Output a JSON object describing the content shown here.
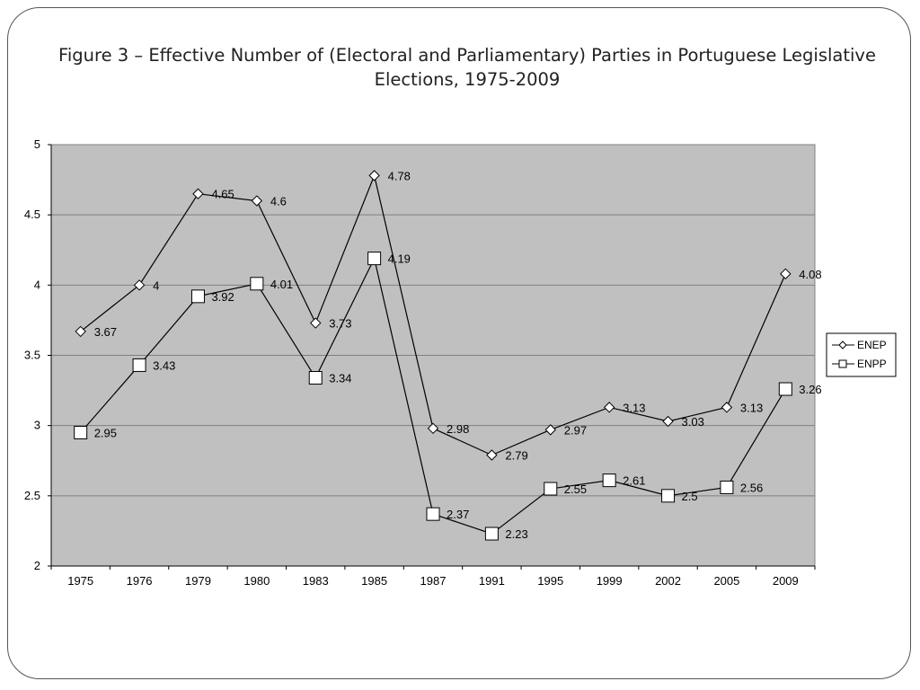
{
  "title_line1": "Figure 3 – Effective Number of (Electoral and Parliamentary) Parties in Portuguese Legislative",
  "title_line2": "Elections, 1975-2009",
  "chart_data": {
    "type": "line",
    "title": "Figure 3 – Effective Number of (Electoral and Parliamentary) Parties in Portuguese Legislative Elections, 1975-2009",
    "xlabel": "",
    "ylabel": "",
    "categories": [
      "1975",
      "1976",
      "1979",
      "1980",
      "1983",
      "1985",
      "1987",
      "1991",
      "1995",
      "1999",
      "2002",
      "2005",
      "2009"
    ],
    "ylim": [
      2,
      5
    ],
    "yticks": [
      "2",
      "2.5",
      "3",
      "3.5",
      "4",
      "4.5",
      "5"
    ],
    "grid": true,
    "legend_position": "right",
    "series": [
      {
        "name": "ENEP",
        "marker": "diamond",
        "values": [
          3.67,
          4,
          4.65,
          4.6,
          3.73,
          4.78,
          2.98,
          2.79,
          2.97,
          3.13,
          3.03,
          3.13,
          4.08
        ],
        "labels": [
          "3.67",
          "4",
          "4.65",
          "4.6",
          "3.73",
          "4.78",
          "2.98",
          "2.79",
          "2.97",
          "3.13",
          "3.03",
          "3.13",
          "4.08"
        ]
      },
      {
        "name": "ENPP",
        "marker": "square",
        "values": [
          2.95,
          3.43,
          3.92,
          4.01,
          3.34,
          4.19,
          2.37,
          2.23,
          2.55,
          2.61,
          2.5,
          2.56,
          3.26
        ],
        "labels": [
          "2.95",
          "3.43",
          "3.92",
          "4.01",
          "3.34",
          "4.19",
          "2.37",
          "2.23",
          "2.55",
          "2.61",
          "2.5",
          "2.56",
          "3.26"
        ]
      }
    ],
    "colors": {
      "plot_background": "#c0c0c0",
      "gridline": "#808080",
      "line": "#000000",
      "marker_fill": "#ffffff"
    }
  }
}
